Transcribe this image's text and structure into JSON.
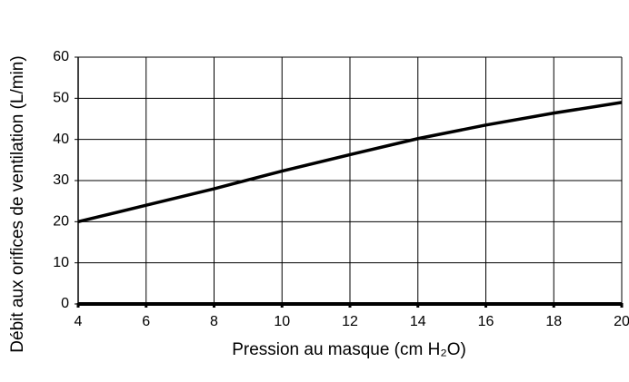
{
  "chart_data": {
    "type": "line",
    "x_label": "Pression au masque (cm H₂O)",
    "y_label": "Débit aux orifices de ventilation (L/min)",
    "x": [
      4,
      6,
      8,
      10,
      12,
      14,
      16,
      18,
      20
    ],
    "values": [
      20,
      24,
      28,
      32.3,
      36.3,
      40.2,
      43.5,
      46.4,
      49
    ],
    "color": "#000000",
    "xlim": [
      4,
      20
    ],
    "xticks": [
      4,
      6,
      8,
      10,
      12,
      14,
      16,
      18,
      20
    ],
    "ylim": [
      0,
      60
    ],
    "yticks": [
      0,
      10,
      20,
      30,
      40,
      50,
      60
    ],
    "grid": true
  }
}
